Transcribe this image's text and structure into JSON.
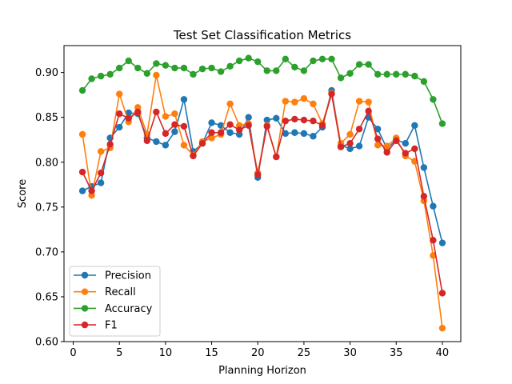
{
  "chart_data": {
    "type": "line",
    "title": "Test Set Classification Metrics",
    "xlabel": "Planning Horizon",
    "ylabel": "Score",
    "xlim": [
      -1,
      42
    ],
    "ylim": [
      0.6,
      0.93
    ],
    "xticks": [
      0,
      5,
      10,
      15,
      20,
      25,
      30,
      35,
      40
    ],
    "yticks": [
      0.6,
      0.65,
      0.7,
      0.75,
      0.8,
      0.85,
      0.9
    ],
    "legend_position": "lower-left",
    "grid": false,
    "x": [
      1,
      2,
      3,
      4,
      5,
      6,
      7,
      8,
      9,
      10,
      11,
      12,
      13,
      14,
      15,
      16,
      17,
      18,
      19,
      20,
      21,
      22,
      23,
      24,
      25,
      26,
      27,
      28,
      29,
      30,
      31,
      32,
      33,
      34,
      35,
      36,
      37,
      38,
      39,
      40
    ],
    "series": [
      {
        "name": "Precision",
        "color": "#1f77b4",
        "values": [
          0.768,
          0.773,
          0.777,
          0.827,
          0.839,
          0.855,
          0.854,
          0.827,
          0.823,
          0.819,
          0.834,
          0.87,
          0.812,
          0.821,
          0.844,
          0.841,
          0.833,
          0.831,
          0.85,
          0.783,
          0.847,
          0.849,
          0.832,
          0.833,
          0.832,
          0.829,
          0.839,
          0.88,
          0.819,
          0.815,
          0.818,
          0.85,
          0.837,
          0.815,
          0.825,
          0.821,
          0.841,
          0.794,
          0.751,
          0.71
        ]
      },
      {
        "name": "Recall",
        "color": "#ff7f0e",
        "values": [
          0.831,
          0.763,
          0.812,
          0.816,
          0.876,
          0.845,
          0.861,
          0.831,
          0.897,
          0.851,
          0.854,
          0.819,
          0.808,
          0.823,
          0.827,
          0.831,
          0.865,
          0.841,
          0.843,
          0.788,
          0.841,
          0.806,
          0.868,
          0.867,
          0.871,
          0.865,
          0.843,
          0.877,
          0.821,
          0.831,
          0.868,
          0.867,
          0.819,
          0.818,
          0.827,
          0.807,
          0.801,
          0.757,
          0.696,
          0.615
        ]
      },
      {
        "name": "Accuracy",
        "color": "#2ca02c",
        "values": [
          0.88,
          0.893,
          0.896,
          0.898,
          0.905,
          0.913,
          0.905,
          0.899,
          0.91,
          0.908,
          0.905,
          0.905,
          0.898,
          0.904,
          0.905,
          0.901,
          0.907,
          0.913,
          0.916,
          0.912,
          0.902,
          0.902,
          0.915,
          0.906,
          0.902,
          0.913,
          0.915,
          0.915,
          0.894,
          0.899,
          0.909,
          0.909,
          0.898,
          0.898,
          0.898,
          0.898,
          0.896,
          0.89,
          0.87,
          0.843
        ]
      },
      {
        "name": "F1",
        "color": "#d62728",
        "values": [
          0.789,
          0.768,
          0.788,
          0.82,
          0.854,
          0.849,
          0.856,
          0.824,
          0.856,
          0.832,
          0.842,
          0.84,
          0.807,
          0.821,
          0.833,
          0.833,
          0.842,
          0.836,
          0.841,
          0.786,
          0.84,
          0.806,
          0.846,
          0.848,
          0.847,
          0.846,
          0.841,
          0.876,
          0.817,
          0.821,
          0.837,
          0.857,
          0.826,
          0.811,
          0.824,
          0.81,
          0.815,
          0.762,
          0.713,
          0.654
        ]
      }
    ]
  }
}
